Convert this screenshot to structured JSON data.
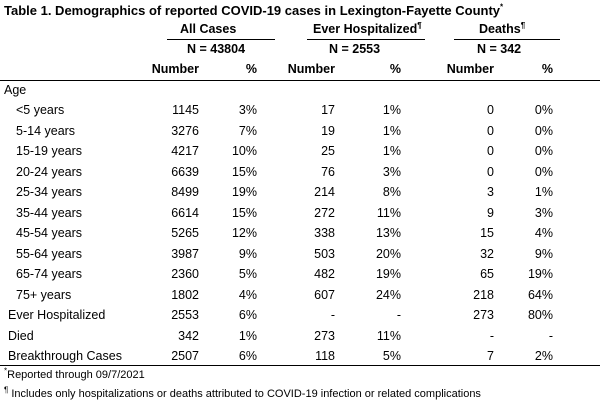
{
  "title": "Table 1. Demographics of reported COVID-19 cases in Lexington-Fayette County",
  "title_mark": "*",
  "groups": [
    {
      "label": "All Cases",
      "mark": "",
      "n": "N = 43804"
    },
    {
      "label": "Ever Hospitalized",
      "mark": "¶",
      "n": "N = 2553"
    },
    {
      "label": "Deaths",
      "mark": "¶",
      "n": "N = 342"
    }
  ],
  "subheaders": {
    "number": "Number",
    "pct": "%"
  },
  "age_header": "Age",
  "age_rows": [
    {
      "label": "<5 years",
      "v": [
        "1145",
        "3%",
        "17",
        "1%",
        "0",
        "0%"
      ]
    },
    {
      "label": "5-14 years",
      "v": [
        "3276",
        "7%",
        "19",
        "1%",
        "0",
        "0%"
      ]
    },
    {
      "label": "15-19 years",
      "v": [
        "4217",
        "10%",
        "25",
        "1%",
        "0",
        "0%"
      ]
    },
    {
      "label": "20-24 years",
      "v": [
        "6639",
        "15%",
        "76",
        "3%",
        "0",
        "0%"
      ]
    },
    {
      "label": "25-34 years",
      "v": [
        "8499",
        "19%",
        "214",
        "8%",
        "3",
        "1%"
      ]
    },
    {
      "label": "35-44 years",
      "v": [
        "6614",
        "15%",
        "272",
        "11%",
        "9",
        "3%"
      ]
    },
    {
      "label": "45-54 years",
      "v": [
        "5265",
        "12%",
        "338",
        "13%",
        "15",
        "4%"
      ]
    },
    {
      "label": "55-64 years",
      "v": [
        "3987",
        "9%",
        "503",
        "20%",
        "32",
        "9%"
      ]
    },
    {
      "label": "65-74 years",
      "v": [
        "2360",
        "5%",
        "482",
        "19%",
        "65",
        "19%"
      ]
    },
    {
      "label": "75+ years",
      "v": [
        "1802",
        "4%",
        "607",
        "24%",
        "218",
        "64%"
      ]
    }
  ],
  "summary_rows": [
    {
      "label": "Ever Hospitalized",
      "v": [
        "2553",
        "6%",
        "-",
        "-",
        "273",
        "80%"
      ]
    },
    {
      "label": "Died",
      "v": [
        "342",
        "1%",
        "273",
        "11%",
        "-",
        "-"
      ]
    },
    {
      "label": "Breakthrough Cases",
      "v": [
        "2507",
        "6%",
        "118",
        "5%",
        "7",
        "2%"
      ]
    }
  ],
  "footnotes": [
    {
      "mark": "*",
      "text": "Reported through 09/7/2021"
    },
    {
      "mark": "¶",
      "text": " Includes only hospitalizations or deaths attributed to COVID-19 infection or related complications"
    }
  ]
}
